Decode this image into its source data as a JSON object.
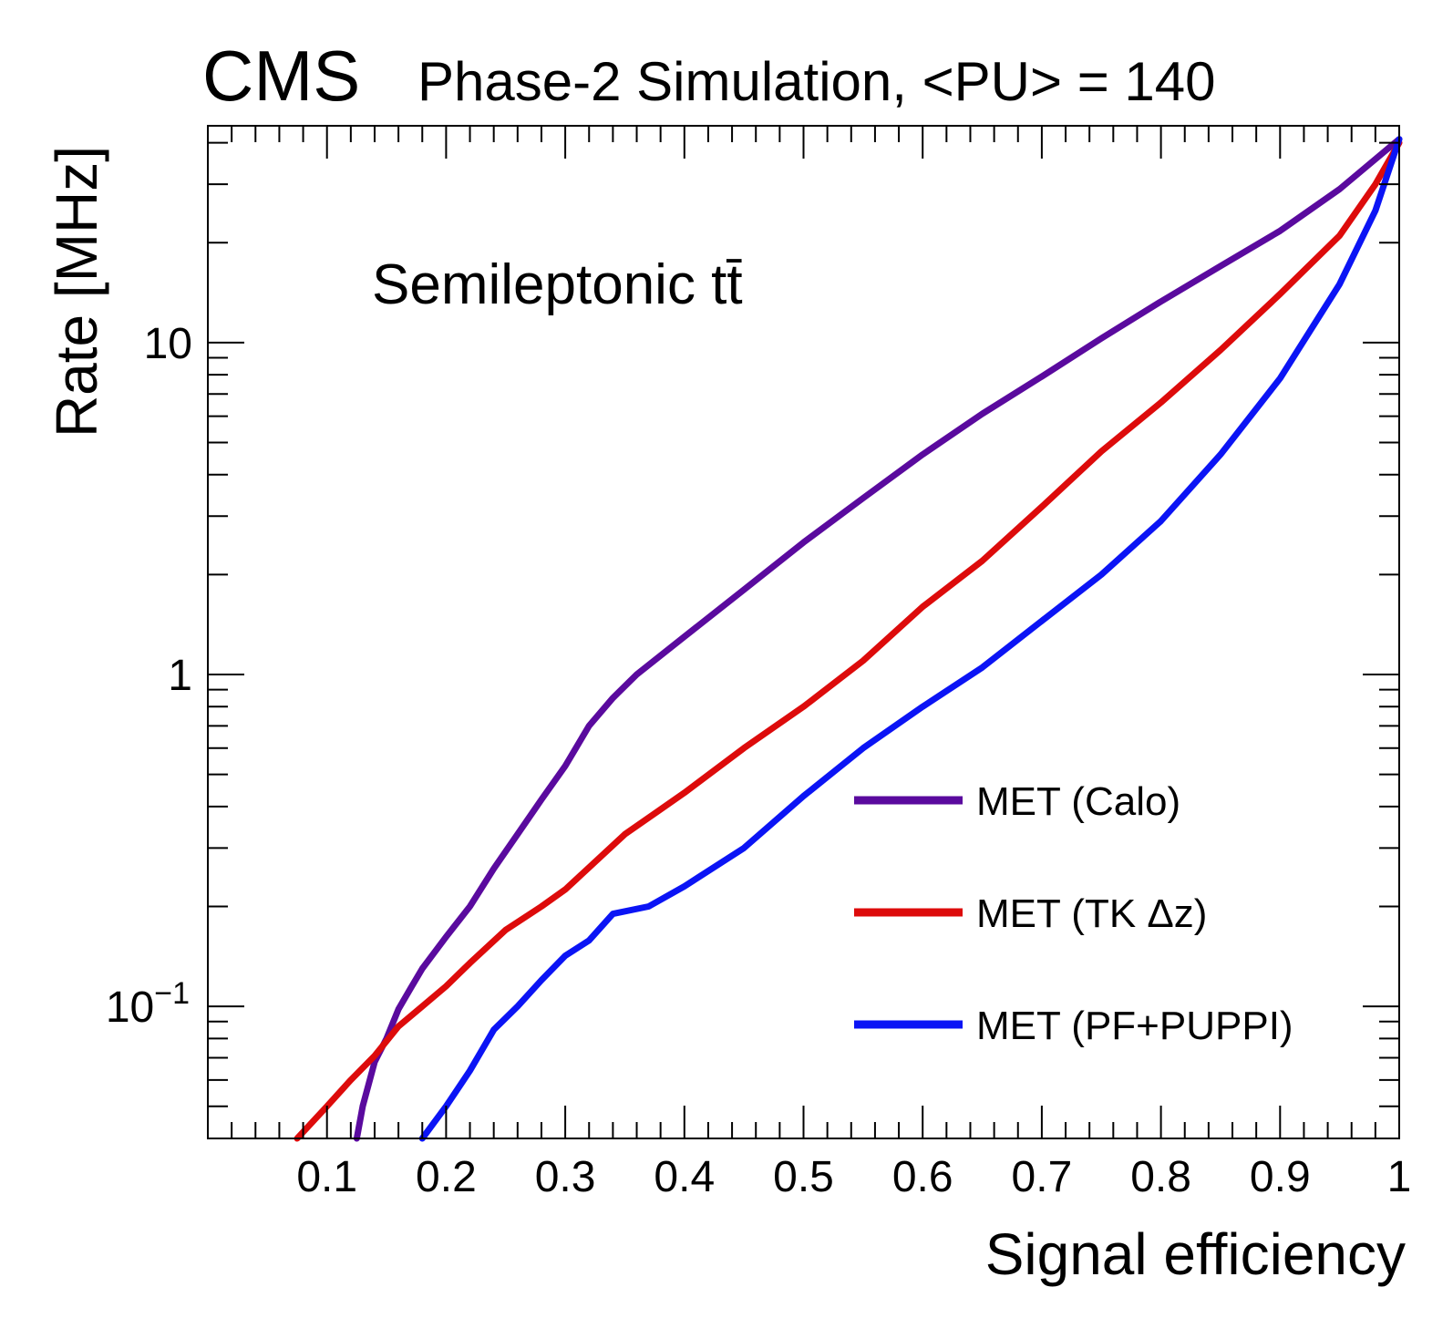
{
  "header": {
    "experiment": "CMS",
    "subtitle": "Phase-2 Simulation, <PU> = 140"
  },
  "chart_data": {
    "type": "line",
    "title": "CMS Phase-2 Simulation, <PU> = 140",
    "xlabel": "Signal efficiency",
    "ylabel": "Rate [MHz]",
    "xlim": [
      0.0,
      1.0
    ],
    "ylim": [
      0.04,
      45
    ],
    "yscale": "log",
    "grid": false,
    "legend_position": "bottom-right",
    "annotation": "Semileptonic tt̄",
    "x_ticks": [
      {
        "value": 0.1,
        "label": "0.1"
      },
      {
        "value": 0.2,
        "label": "0.2"
      },
      {
        "value": 0.3,
        "label": "0.3"
      },
      {
        "value": 0.4,
        "label": "0.4"
      },
      {
        "value": 0.5,
        "label": "0.5"
      },
      {
        "value": 0.6,
        "label": "0.6"
      },
      {
        "value": 0.7,
        "label": "0.7"
      },
      {
        "value": 0.8,
        "label": "0.8"
      },
      {
        "value": 0.9,
        "label": "0.9"
      },
      {
        "value": 1.0,
        "label": "1"
      }
    ],
    "y_ticks": [
      {
        "value": 0.1,
        "base": "10",
        "exponent": "−1"
      },
      {
        "value": 1,
        "label": "1"
      },
      {
        "value": 10,
        "label": "10"
      }
    ],
    "series": [
      {
        "name": "MET (Calo)",
        "color": "#5a0a9e",
        "points": [
          [
            0.125,
            0.04
          ],
          [
            0.13,
            0.05
          ],
          [
            0.14,
            0.068
          ],
          [
            0.15,
            0.08
          ],
          [
            0.16,
            0.098
          ],
          [
            0.17,
            0.113
          ],
          [
            0.18,
            0.13
          ],
          [
            0.2,
            0.162
          ],
          [
            0.22,
            0.2
          ],
          [
            0.24,
            0.26
          ],
          [
            0.26,
            0.33
          ],
          [
            0.28,
            0.42
          ],
          [
            0.3,
            0.53
          ],
          [
            0.32,
            0.7
          ],
          [
            0.34,
            0.85
          ],
          [
            0.36,
            1.0
          ],
          [
            0.4,
            1.3
          ],
          [
            0.45,
            1.8
          ],
          [
            0.5,
            2.5
          ],
          [
            0.55,
            3.4
          ],
          [
            0.6,
            4.6
          ],
          [
            0.65,
            6.1
          ],
          [
            0.7,
            7.9
          ],
          [
            0.75,
            10.3
          ],
          [
            0.8,
            13.3
          ],
          [
            0.85,
            17.0
          ],
          [
            0.9,
            21.7
          ],
          [
            0.95,
            29.0
          ],
          [
            1.0,
            41.0
          ]
        ]
      },
      {
        "name": "MET (TK Δz)",
        "color": "#dd0b0b",
        "points": [
          [
            0.075,
            0.04
          ],
          [
            0.1,
            0.05
          ],
          [
            0.12,
            0.06
          ],
          [
            0.14,
            0.071
          ],
          [
            0.16,
            0.087
          ],
          [
            0.18,
            0.1
          ],
          [
            0.2,
            0.115
          ],
          [
            0.22,
            0.135
          ],
          [
            0.25,
            0.17
          ],
          [
            0.28,
            0.2
          ],
          [
            0.3,
            0.225
          ],
          [
            0.35,
            0.33
          ],
          [
            0.4,
            0.44
          ],
          [
            0.45,
            0.6
          ],
          [
            0.5,
            0.8
          ],
          [
            0.55,
            1.1
          ],
          [
            0.6,
            1.6
          ],
          [
            0.65,
            2.2
          ],
          [
            0.7,
            3.2
          ],
          [
            0.75,
            4.7
          ],
          [
            0.8,
            6.6
          ],
          [
            0.85,
            9.5
          ],
          [
            0.9,
            14.0
          ],
          [
            0.95,
            21.0
          ],
          [
            0.98,
            30.0
          ],
          [
            1.0,
            40.0
          ]
        ]
      },
      {
        "name": "MET (PF+PUPPI)",
        "color": "#0b14f5",
        "points": [
          [
            0.18,
            0.04
          ],
          [
            0.2,
            0.05
          ],
          [
            0.22,
            0.064
          ],
          [
            0.24,
            0.085
          ],
          [
            0.26,
            0.1
          ],
          [
            0.28,
            0.12
          ],
          [
            0.3,
            0.142
          ],
          [
            0.32,
            0.158
          ],
          [
            0.34,
            0.19
          ],
          [
            0.37,
            0.2
          ],
          [
            0.4,
            0.23
          ],
          [
            0.45,
            0.3
          ],
          [
            0.5,
            0.43
          ],
          [
            0.55,
            0.6
          ],
          [
            0.6,
            0.8
          ],
          [
            0.65,
            1.05
          ],
          [
            0.7,
            1.45
          ],
          [
            0.75,
            2.0
          ],
          [
            0.8,
            2.9
          ],
          [
            0.85,
            4.6
          ],
          [
            0.9,
            7.8
          ],
          [
            0.95,
            15.0
          ],
          [
            0.98,
            25.0
          ],
          [
            1.0,
            41.0
          ]
        ]
      }
    ]
  }
}
